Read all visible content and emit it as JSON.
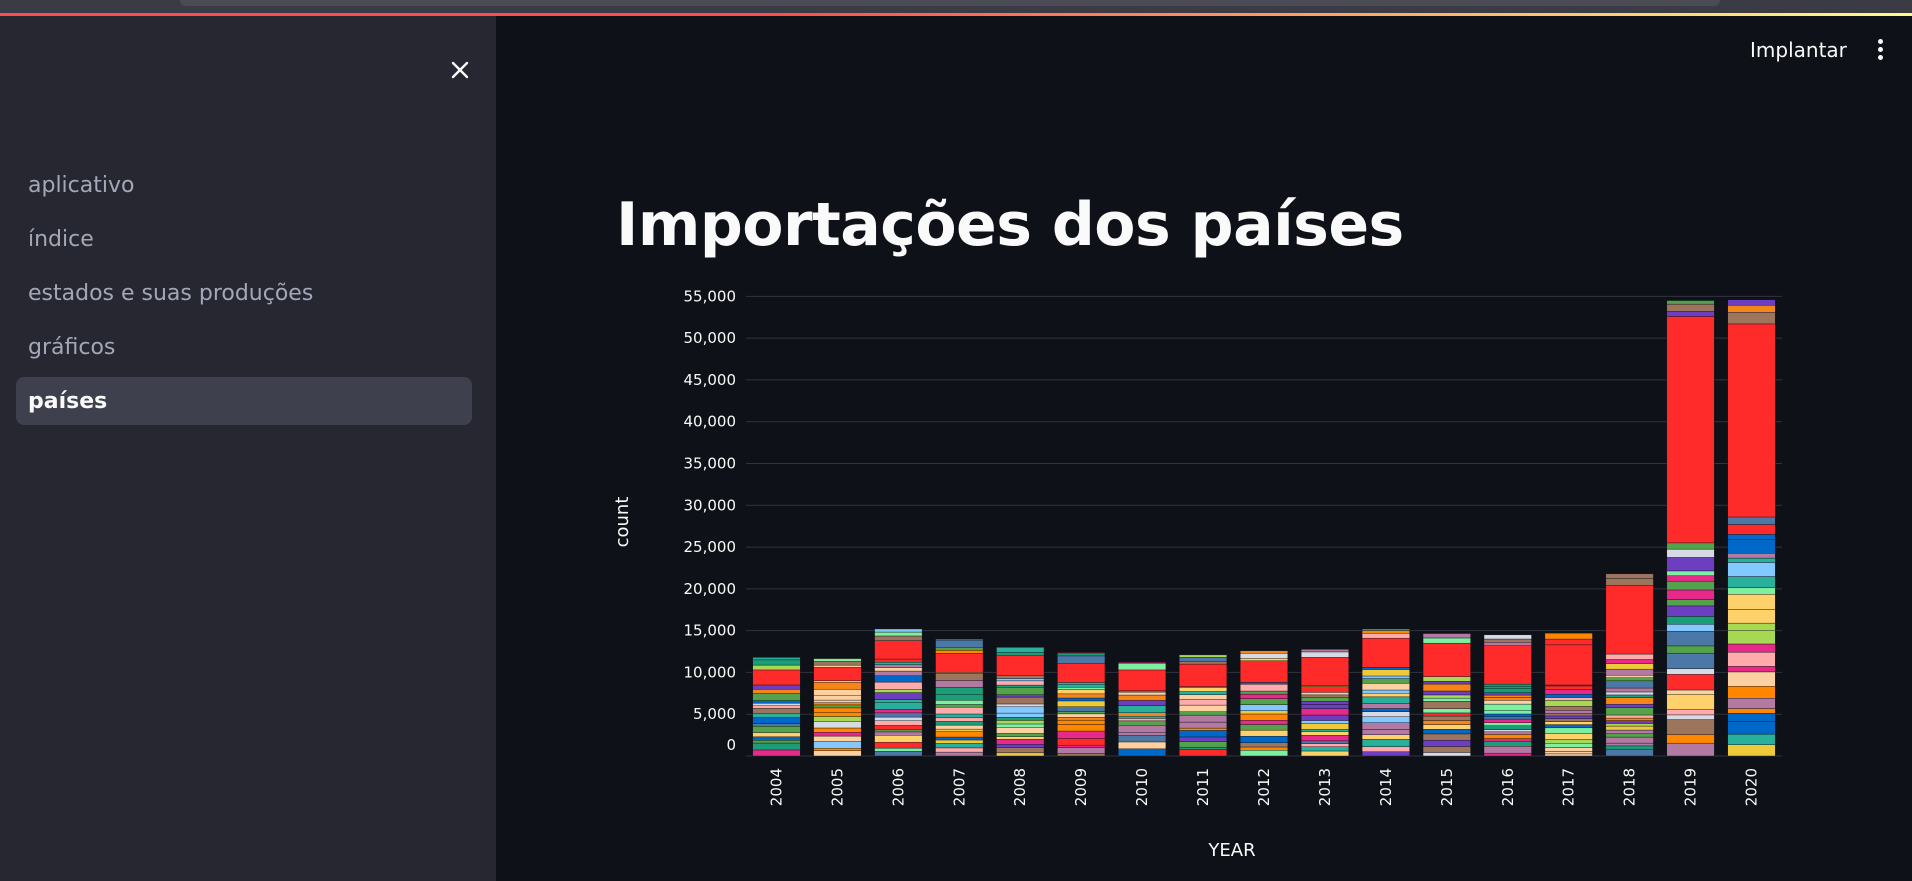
{
  "sidebar": {
    "items": [
      {
        "label": "aplicativo",
        "active": false
      },
      {
        "label": "índice",
        "active": false
      },
      {
        "label": "estados e suas produções",
        "active": false
      },
      {
        "label": "gráficos",
        "active": false
      },
      {
        "label": "países",
        "active": true
      }
    ],
    "close_icon": "close-icon"
  },
  "header": {
    "deploy_label": "Implantar",
    "menu_icon": "kebab-menu-icon"
  },
  "main": {
    "title": "Importações dos países"
  },
  "colors": {
    "accent": "#ff4b4b",
    "top_segment": "#ff2b2b",
    "sidebar_bg": "#262730",
    "main_bg": "#0e1117"
  },
  "chart_data": {
    "type": "bar",
    "stacked": true,
    "xlabel": "YEAR",
    "ylabel": "count",
    "ylim": [
      0,
      56000
    ],
    "yticks": [
      0,
      5000,
      10000,
      15000,
      20000,
      25000,
      30000,
      35000,
      40000,
      45000,
      50000,
      55000
    ],
    "ytick_labels": [
      "0",
      "5,000",
      "10,000",
      "15,000",
      "20,000",
      "25,000",
      "30,000",
      "35,000",
      "40,000",
      "45,000",
      "50,000",
      "55,000"
    ],
    "grid": true,
    "legend": "none",
    "categories": [
      "2004",
      "2005",
      "2006",
      "2007",
      "2008",
      "2009",
      "2010",
      "2011",
      "2012",
      "2013",
      "2014",
      "2015",
      "2016",
      "2017",
      "2018",
      "2019",
      "2020"
    ],
    "totals": [
      11800,
      11700,
      15200,
      14000,
      13000,
      12400,
      11200,
      12100,
      12600,
      12800,
      15200,
      14700,
      14500,
      14700,
      21800,
      54500,
      54600
    ],
    "dominant_segment": [
      {
        "year": "2004",
        "start": 8500,
        "end": 10300
      },
      {
        "year": "2005",
        "start": 9000,
        "end": 10600
      },
      {
        "year": "2006",
        "start": 11600,
        "end": 13800
      },
      {
        "year": "2007",
        "start": 10000,
        "end": 12300
      },
      {
        "year": "2008",
        "start": 9600,
        "end": 12000
      },
      {
        "year": "2009",
        "start": 8800,
        "end": 11100
      },
      {
        "year": "2010",
        "start": 7800,
        "end": 10300
      },
      {
        "year": "2011",
        "start": 8300,
        "end": 11000
      },
      {
        "year": "2012",
        "start": 8800,
        "end": 11400
      },
      {
        "year": "2013",
        "start": 8400,
        "end": 11800
      },
      {
        "year": "2014",
        "start": 10600,
        "end": 14100
      },
      {
        "year": "2015",
        "start": 9500,
        "end": 13500
      },
      {
        "year": "2016",
        "start": 8600,
        "end": 13200
      },
      {
        "year": "2017",
        "start": 8500,
        "end": 13300
      },
      {
        "year": "2018",
        "start": 12200,
        "end": 20400
      },
      {
        "year": "2019",
        "start": 25500,
        "end": 52600
      },
      {
        "year": "2020",
        "start": 28600,
        "end": 51700
      }
    ]
  }
}
